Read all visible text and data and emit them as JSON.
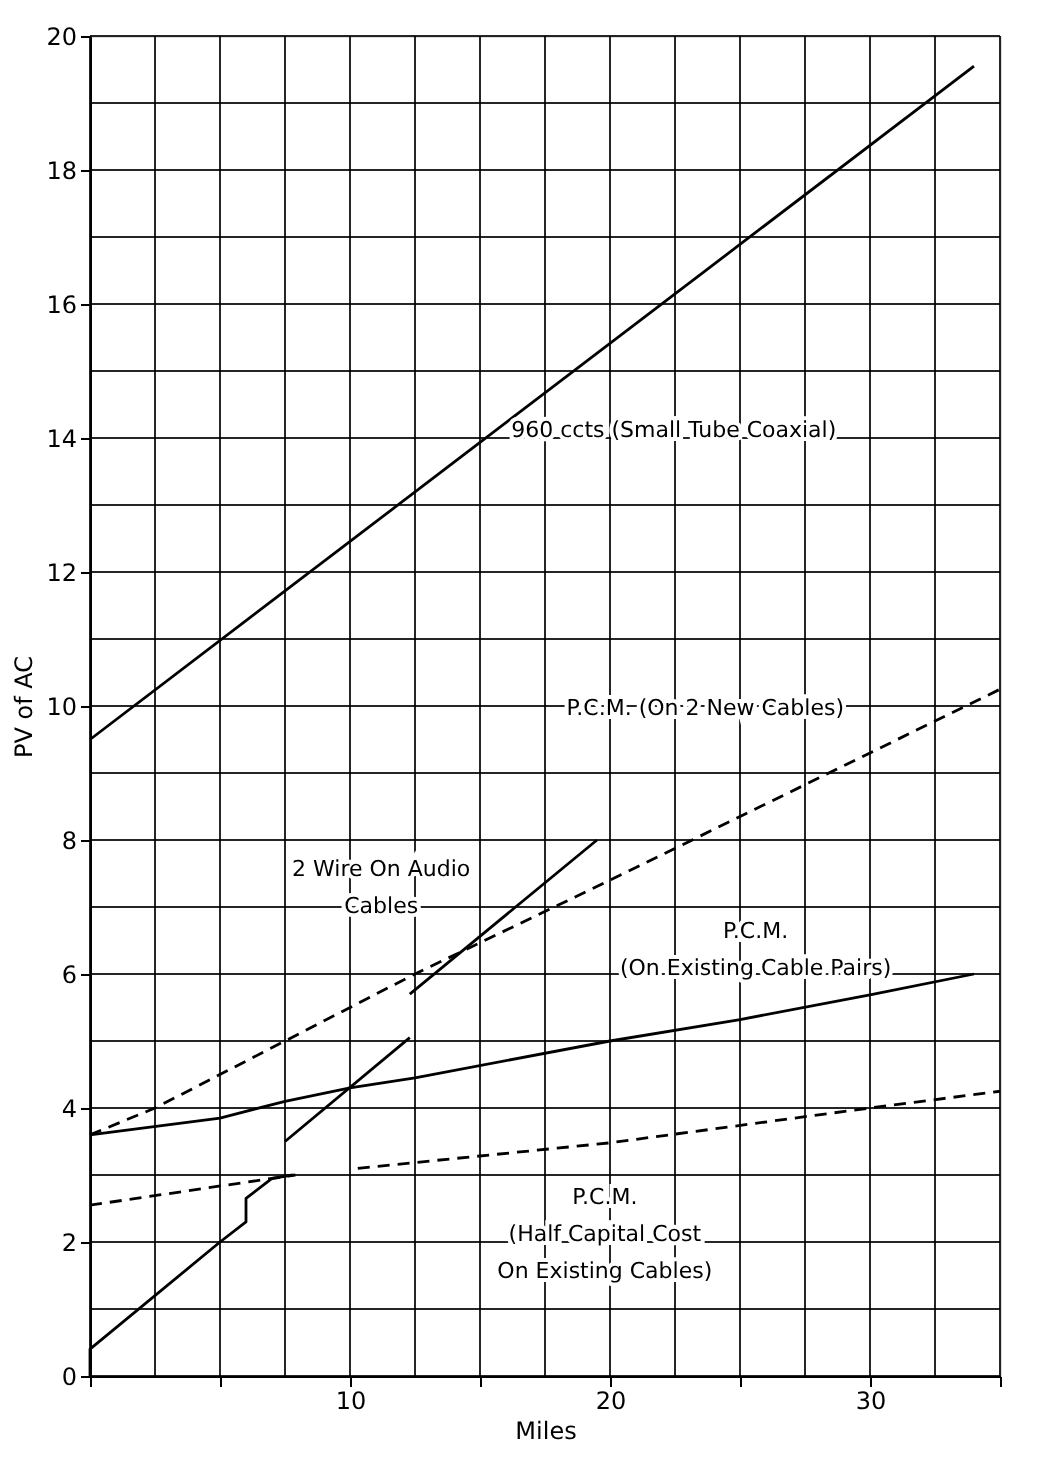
{
  "chart_data": {
    "type": "line",
    "xlabel": "Miles",
    "ylabel": "PV of AC",
    "xlim": [
      0,
      35
    ],
    "ylim": [
      0,
      20
    ],
    "xticks": [
      {
        "value": 0,
        "label": null
      },
      {
        "value": 2.5,
        "label": null
      },
      {
        "value": 5,
        "label": null
      },
      {
        "value": 7.5,
        "label": null
      },
      10,
      {
        "value": 12.5,
        "label": null
      },
      {
        "value": 15,
        "label": null
      },
      {
        "value": 17.5,
        "label": null
      },
      20,
      {
        "value": 22.5,
        "label": null
      },
      {
        "value": 25,
        "label": null
      },
      {
        "value": 27.5,
        "label": null
      },
      30,
      {
        "value": 32.5,
        "label": null
      },
      {
        "value": 35,
        "label": null
      }
    ],
    "yticks": [
      0,
      {
        "value": 1,
        "label": null
      },
      2,
      {
        "value": 3,
        "label": null
      },
      4,
      {
        "value": 5,
        "label": null
      },
      6,
      {
        "value": 7,
        "label": null
      },
      8,
      {
        "value": 9,
        "label": null
      },
      10,
      {
        "value": 11,
        "label": null
      },
      12,
      {
        "value": 13,
        "label": null
      },
      14,
      {
        "value": 15,
        "label": null
      },
      16,
      {
        "value": 17,
        "label": null
      },
      18,
      {
        "value": 19,
        "label": null
      },
      20
    ],
    "grid": true,
    "marker": "none",
    "series": [
      {
        "name": "960 ccts (Small Tube Coaxial)",
        "color": "#000000",
        "line_style": "solid",
        "x": [
          0,
          34
        ],
        "values": [
          9.5,
          19.55
        ]
      },
      {
        "name": "P.C.M. (On 2 New Cables)",
        "color": "#000000",
        "line_style": "dashed",
        "x": [
          0,
          2.5,
          7.5,
          12.5,
          20,
          30,
          35
        ],
        "values": [
          3.6,
          4.0,
          5.0,
          6.0,
          7.4,
          9.3,
          10.25
        ]
      },
      {
        "color": "#000000",
        "line_style": "solid",
        "x": [
          0,
          0,
          5,
          6,
          6,
          7,
          7.8
        ],
        "values": [
          0,
          0.4,
          2.0,
          2.3,
          2.65,
          2.95,
          3.0
        ]
      },
      {
        "color": "#000000",
        "line_style": "solid",
        "x": [
          7.5,
          12.3
        ],
        "values": [
          3.5,
          5.05
        ]
      },
      {
        "name": "2 Wire On Audio\nCables",
        "color": "#000000",
        "line_style": "solid",
        "x": [
          12.3,
          19.5
        ],
        "values": [
          5.7,
          8.0
        ]
      },
      {
        "name": "P.C.M.\n(On Existing Cable Pairs)",
        "color": "#000000",
        "line_style": "solid",
        "x": [
          0,
          5,
          7.5,
          10,
          12.5,
          20,
          25,
          30,
          34
        ],
        "values": [
          3.6,
          3.85,
          4.1,
          4.3,
          4.45,
          5.0,
          5.32,
          5.69,
          6.0
        ]
      },
      {
        "color": "#000000",
        "line_style": "dashed",
        "x": [
          0,
          7.9
        ],
        "values": [
          2.55,
          3.0
        ]
      },
      {
        "name": "P.C.M.\n(Half Capital Cost\nOn Existing Cables)",
        "color": "#000000",
        "line_style": "dashed",
        "x": [
          10.3,
          20,
          30,
          35
        ],
        "values": [
          3.1,
          3.48,
          4.0,
          4.25
        ]
      }
    ]
  }
}
